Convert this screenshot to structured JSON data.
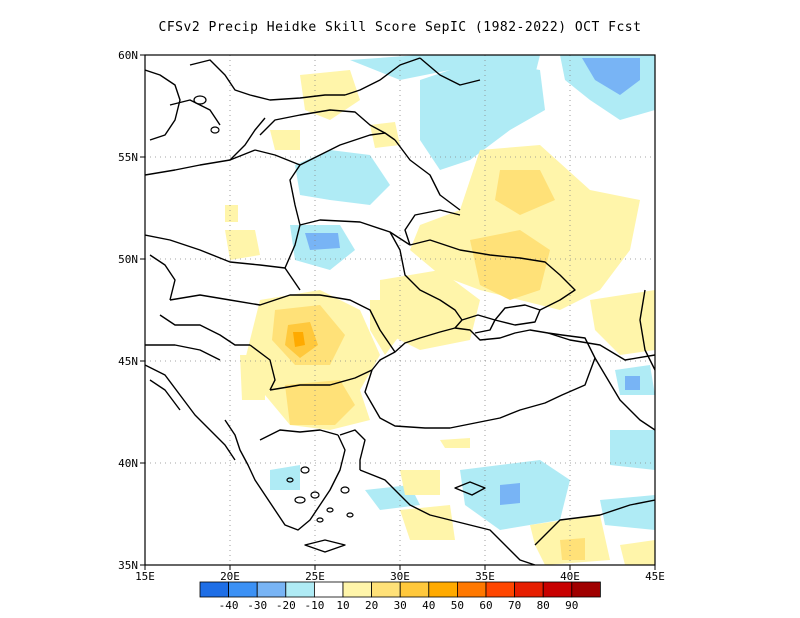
{
  "title": "CFSv2 Precip Heidke Skill Score SepIC (1982-2022) OCT Fcst",
  "map": {
    "lon_labels": [
      "15E",
      "20E",
      "25E",
      "30E",
      "35E",
      "40E",
      "45E"
    ],
    "lat_labels": [
      "60N",
      "55N",
      "50N",
      "45N",
      "40N",
      "35N"
    ],
    "lon_range": [
      15,
      45
    ],
    "lat_range": [
      35,
      60
    ],
    "grid": "dotted"
  },
  "colorbar": {
    "colors": [
      "#1e6ee6",
      "#3c91f5",
      "#78b4f5",
      "#afebf5",
      "#ffffff",
      "#fff5aa",
      "#ffe178",
      "#ffc83c",
      "#ffaa00",
      "#ff7800",
      "#ff4600",
      "#e61e00",
      "#c80000",
      "#a00000"
    ],
    "labels": [
      "-40",
      "-30",
      "-20",
      "-10",
      "10",
      "20",
      "30",
      "40",
      "50",
      "60",
      "70",
      "80",
      "90"
    ]
  }
}
